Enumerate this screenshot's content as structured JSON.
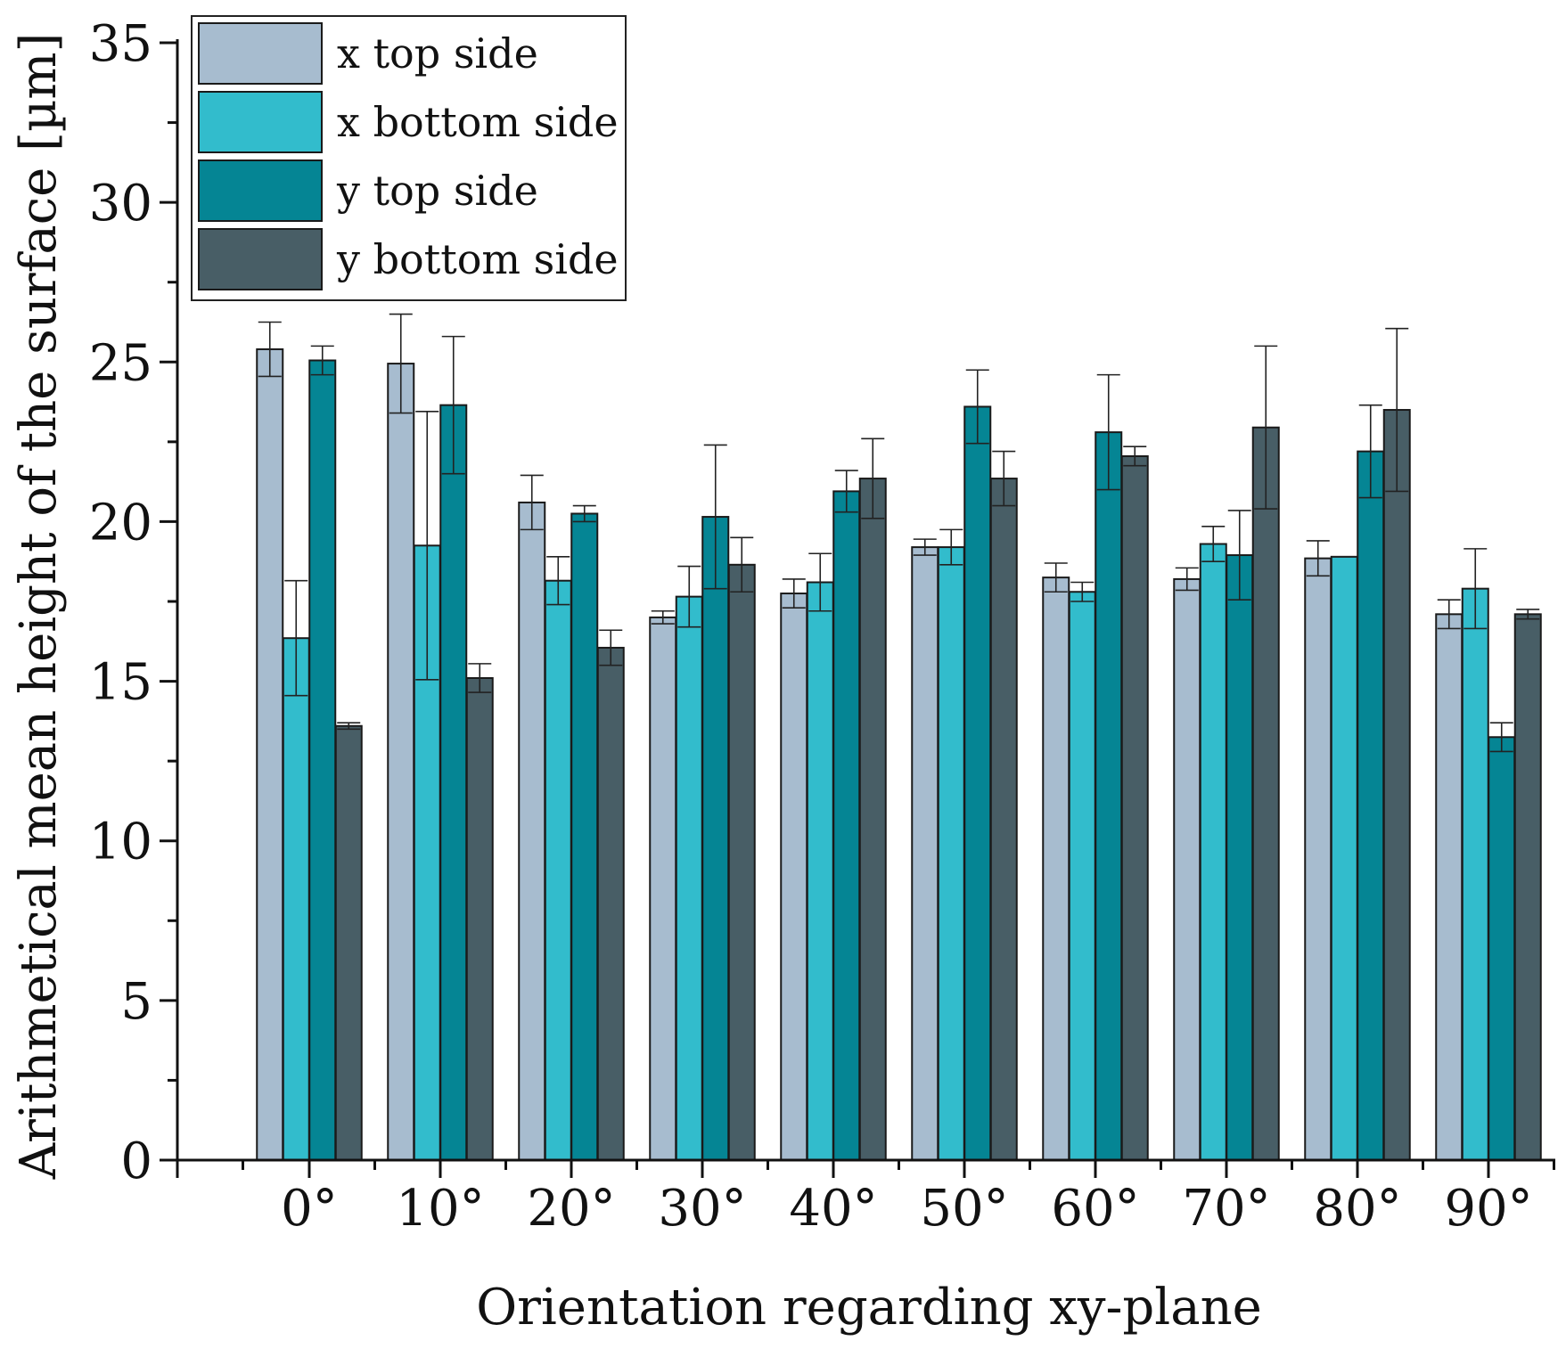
{
  "chart_data": {
    "type": "bar",
    "title": "",
    "xlabel": "Orientation regarding xy-plane",
    "ylabel": "Arithmetical mean height of the surface [µm]",
    "ylim": [
      0,
      35
    ],
    "yticks": [
      "0",
      "5",
      "10",
      "15",
      "20",
      "25",
      "30",
      "35"
    ],
    "categories": [
      "0°",
      "10°",
      "20°",
      "30°",
      "40°",
      "50°",
      "60°",
      "70°",
      "80°",
      "90°"
    ],
    "legend_position": "top-left",
    "series": [
      {
        "name": "x top side",
        "color": "#a7bccf",
        "values": [
          25.4,
          24.95,
          20.6,
          17.0,
          17.75,
          19.2,
          18.25,
          18.2,
          18.85,
          17.1
        ],
        "errors": [
          0.85,
          1.55,
          0.85,
          0.2,
          0.45,
          0.25,
          0.45,
          0.35,
          0.55,
          0.45
        ]
      },
      {
        "name": "x bottom side",
        "color": "#32bccc",
        "values": [
          16.35,
          19.25,
          18.15,
          17.65,
          18.1,
          19.2,
          17.8,
          19.3,
          18.9,
          17.9
        ],
        "errors": [
          1.8,
          4.2,
          0.75,
          0.95,
          0.9,
          0.55,
          0.3,
          0.55,
          0.0,
          1.25
        ]
      },
      {
        "name": "y top side",
        "color": "#058594",
        "values": [
          25.05,
          23.65,
          20.25,
          20.15,
          20.95,
          23.6,
          22.8,
          18.95,
          22.2,
          13.25
        ],
        "errors": [
          0.45,
          2.15,
          0.25,
          2.25,
          0.65,
          1.15,
          1.8,
          1.4,
          1.45,
          0.45
        ]
      },
      {
        "name": "y bottom side",
        "color": "#485e66",
        "values": [
          13.6,
          15.1,
          16.05,
          18.65,
          21.35,
          21.35,
          22.05,
          22.95,
          23.5,
          17.1
        ],
        "errors": [
          0.1,
          0.45,
          0.55,
          0.85,
          1.25,
          0.85,
          0.3,
          2.55,
          2.55,
          0.15
        ]
      }
    ]
  }
}
